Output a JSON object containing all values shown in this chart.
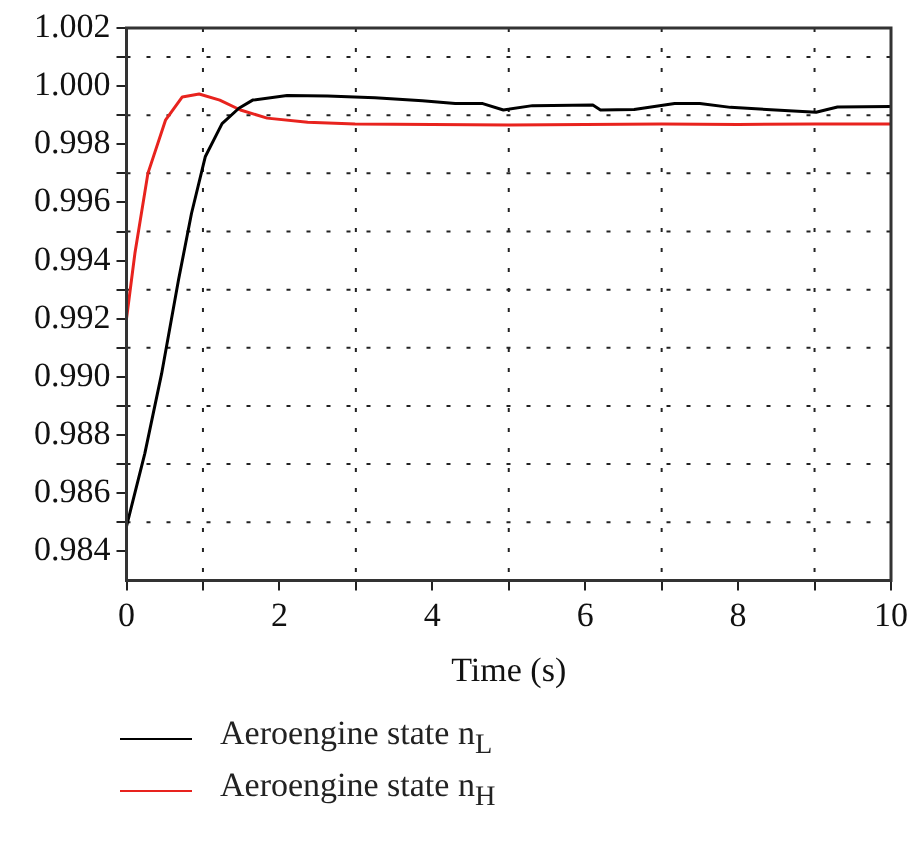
{
  "chart_data": {
    "type": "line",
    "xlabel": "Time (s)",
    "series": [
      {
        "name": "Aeroengine state n$_{L}$",
        "color": "#000000",
        "x": [
          0,
          0.24,
          0.46,
          0.68,
          0.85,
          1.03,
          1.25,
          1.47,
          1.65,
          2.1,
          2.63,
          3.25,
          3.87,
          4.3,
          4.66,
          4.93,
          5.31,
          6.1,
          6.2,
          6.64,
          7.17,
          7.5,
          7.9,
          9.02,
          9.3,
          10
        ],
        "values": [
          0.98486,
          0.98737,
          0.99012,
          0.99333,
          0.99562,
          0.99757,
          0.99871,
          0.99924,
          0.99952,
          0.99968,
          0.99966,
          0.9996,
          0.9995,
          0.9994,
          0.9994,
          0.99918,
          0.99933,
          0.99935,
          0.99918,
          0.9992,
          0.9994,
          0.9994,
          0.99927,
          0.9991,
          0.99928,
          0.9993
        ]
      },
      {
        "name": "Aeroengine state n$_{H}$",
        "color": "#e8231e",
        "x": [
          0,
          0.11,
          0.28,
          0.51,
          0.73,
          0.95,
          1.22,
          1.49,
          1.84,
          2.37,
          2.99,
          4,
          5,
          6,
          7,
          8,
          9,
          10
        ],
        "values": [
          0.992,
          0.99425,
          0.997,
          0.99883,
          0.99963,
          0.99973,
          0.99952,
          0.99918,
          0.9989,
          0.99876,
          0.9987,
          0.99868,
          0.99866,
          0.99868,
          0.9987,
          0.99868,
          0.9987,
          0.9987
        ]
      }
    ],
    "xlim": [
      0,
      10
    ],
    "xticks": [
      0,
      {
        "value": 1,
        "label": null
      },
      2,
      {
        "value": 3,
        "label": null
      },
      4,
      {
        "value": 5,
        "label": null
      },
      6,
      {
        "value": 7,
        "label": null
      },
      8,
      {
        "value": 9,
        "label": null
      },
      10
    ],
    "ylim": [
      0.983,
      1.002
    ],
    "yticks": [
      0.984,
      {
        "value": 0.985,
        "label": null
      },
      0.986,
      {
        "value": 0.987,
        "label": null
      },
      0.988,
      {
        "value": 0.989,
        "label": null
      },
      {
        "value": 0.99,
        "label": "0.990"
      },
      {
        "value": 0.991,
        "label": null
      },
      0.992,
      {
        "value": 0.993,
        "label": null
      },
      0.994,
      {
        "value": 0.995,
        "label": null
      },
      0.996,
      {
        "value": 0.997,
        "label": null
      },
      0.998,
      {
        "value": 0.999,
        "label": null
      },
      {
        "value": 1,
        "label": "1.000"
      },
      {
        "value": 1.001,
        "label": null
      },
      1.002
    ],
    "grid": true,
    "legend": "bottom",
    "marker": "none",
    "line_style": "solid"
  }
}
